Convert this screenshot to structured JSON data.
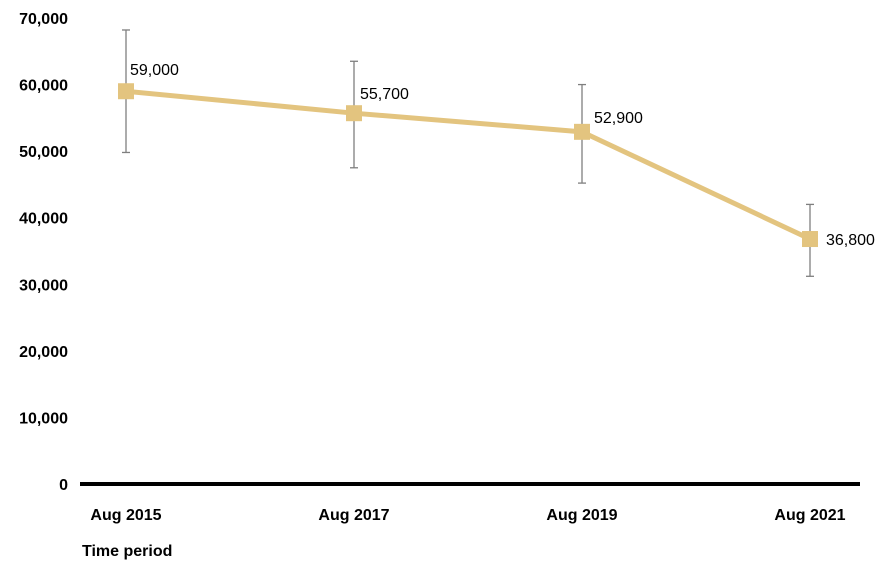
{
  "chart_data": {
    "type": "line",
    "title": "",
    "xlabel": "Time period",
    "ylabel": "",
    "ylim": [
      0,
      70000
    ],
    "yticks": [
      0,
      10000,
      20000,
      30000,
      40000,
      50000,
      60000,
      70000
    ],
    "ytick_labels": [
      "0",
      "10,000",
      "20,000",
      "30,000",
      "40,000",
      "50,000",
      "60,000",
      "70,000"
    ],
    "categories": [
      "Aug 2015",
      "Aug 2017",
      "Aug 2019",
      "Aug 2021"
    ],
    "series": [
      {
        "values": [
          59000,
          55700,
          52900,
          36800
        ],
        "data_labels": [
          "59,000",
          "55,700",
          "52,900",
          "36,800"
        ],
        "error_low": [
          49800,
          47500,
          45200,
          31200
        ],
        "error_high": [
          68200,
          63500,
          60000,
          42000
        ],
        "color": "#E3C47F",
        "marker": "square"
      }
    ],
    "error_bar_color": "#7f7f7f",
    "grid": false,
    "legend": "none"
  }
}
